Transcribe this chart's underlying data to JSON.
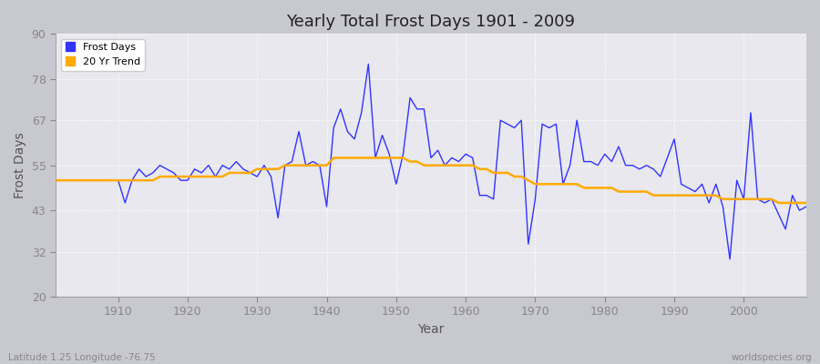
{
  "title": "Yearly Total Frost Days 1901 - 2009",
  "xlabel": "Year",
  "ylabel": "Frost Days",
  "subtitle_left": "Latitude 1.25 Longitude -76.75",
  "subtitle_right": "worldspecies.org",
  "years": [
    1901,
    1902,
    1903,
    1904,
    1905,
    1906,
    1907,
    1908,
    1909,
    1910,
    1911,
    1912,
    1913,
    1914,
    1915,
    1916,
    1917,
    1918,
    1919,
    1920,
    1921,
    1922,
    1923,
    1924,
    1925,
    1926,
    1927,
    1928,
    1929,
    1930,
    1931,
    1932,
    1933,
    1934,
    1935,
    1936,
    1937,
    1938,
    1939,
    1940,
    1941,
    1942,
    1943,
    1944,
    1945,
    1946,
    1947,
    1948,
    1949,
    1950,
    1951,
    1952,
    1953,
    1954,
    1955,
    1956,
    1957,
    1958,
    1959,
    1960,
    1961,
    1962,
    1963,
    1964,
    1965,
    1966,
    1967,
    1968,
    1969,
    1970,
    1971,
    1972,
    1973,
    1974,
    1975,
    1976,
    1977,
    1978,
    1979,
    1980,
    1981,
    1982,
    1983,
    1984,
    1985,
    1986,
    1987,
    1988,
    1989,
    1990,
    1991,
    1992,
    1993,
    1994,
    1995,
    1996,
    1997,
    1998,
    1999,
    2000,
    2001,
    2002,
    2003,
    2004,
    2005,
    2006,
    2007,
    2008,
    2009
  ],
  "frost_days": [
    51,
    51,
    51,
    51,
    51,
    51,
    51,
    51,
    51,
    51,
    45,
    51,
    54,
    52,
    53,
    55,
    54,
    53,
    51,
    51,
    54,
    53,
    55,
    52,
    55,
    54,
    56,
    54,
    53,
    52,
    55,
    52,
    41,
    55,
    56,
    64,
    55,
    56,
    55,
    44,
    65,
    70,
    64,
    62,
    69,
    82,
    57,
    63,
    58,
    50,
    58,
    73,
    70,
    70,
    57,
    59,
    55,
    57,
    56,
    58,
    57,
    47,
    47,
    46,
    67,
    66,
    65,
    67,
    34,
    46,
    66,
    65,
    66,
    50,
    55,
    67,
    56,
    56,
    55,
    58,
    56,
    60,
    55,
    55,
    54,
    55,
    54,
    52,
    57,
    62,
    50,
    49,
    48,
    50,
    45,
    50,
    44,
    30,
    51,
    46,
    69,
    46,
    45,
    46,
    42,
    38,
    47,
    43,
    44
  ],
  "trend_years": [
    1901,
    1902,
    1903,
    1904,
    1905,
    1906,
    1907,
    1908,
    1909,
    1910,
    1911,
    1912,
    1913,
    1914,
    1915,
    1916,
    1917,
    1918,
    1919,
    1920,
    1921,
    1922,
    1923,
    1924,
    1925,
    1926,
    1927,
    1928,
    1929,
    1930,
    1931,
    1932,
    1933,
    1934,
    1935,
    1936,
    1937,
    1938,
    1939,
    1940,
    1941,
    1942,
    1943,
    1944,
    1945,
    1946,
    1947,
    1948,
    1949,
    1950,
    1951,
    1952,
    1953,
    1954,
    1955,
    1956,
    1957,
    1958,
    1959,
    1960,
    1961,
    1962,
    1963,
    1964,
    1965,
    1966,
    1967,
    1968,
    1969,
    1970,
    1971,
    1972,
    1973,
    1974,
    1975,
    1976,
    1977,
    1978,
    1979,
    1980,
    1981,
    1982,
    1983,
    1984,
    1985,
    1986,
    1987,
    1988,
    1989,
    1990,
    1991,
    1992,
    1993,
    1994,
    1995,
    1996,
    1997,
    1998,
    1999,
    2000,
    2001,
    2002,
    2003,
    2004,
    2005,
    2006,
    2007,
    2008,
    2009
  ],
  "trend_values": [
    51,
    51,
    51,
    51,
    51,
    51,
    51,
    51,
    51,
    51,
    51,
    51,
    51,
    51,
    51,
    52,
    52,
    52,
    52,
    52,
    52,
    52,
    52,
    52,
    52,
    53,
    53,
    53,
    53,
    54,
    54,
    54,
    54,
    55,
    55,
    55,
    55,
    55,
    55,
    55,
    57,
    57,
    57,
    57,
    57,
    57,
    57,
    57,
    57,
    57,
    57,
    56,
    56,
    55,
    55,
    55,
    55,
    55,
    55,
    55,
    55,
    54,
    54,
    53,
    53,
    53,
    52,
    52,
    51,
    50,
    50,
    50,
    50,
    50,
    50,
    50,
    49,
    49,
    49,
    49,
    49,
    48,
    48,
    48,
    48,
    48,
    47,
    47,
    47,
    47,
    47,
    47,
    47,
    47,
    47,
    47,
    46,
    46,
    46,
    46,
    46,
    46,
    46,
    46,
    45,
    45,
    45,
    45,
    45
  ],
  "line_color": "#3333ff",
  "trend_color": "#ffaa00",
  "bg_color": "#e8e8ee",
  "fig_bg_color": "#c8c8d0",
  "ylim": [
    20,
    90
  ],
  "yticks": [
    20,
    32,
    43,
    55,
    67,
    78,
    90
  ],
  "xticks": [
    1910,
    1920,
    1930,
    1940,
    1950,
    1960,
    1970,
    1980,
    1990,
    2000
  ],
  "xlim": [
    1901,
    2009
  ]
}
